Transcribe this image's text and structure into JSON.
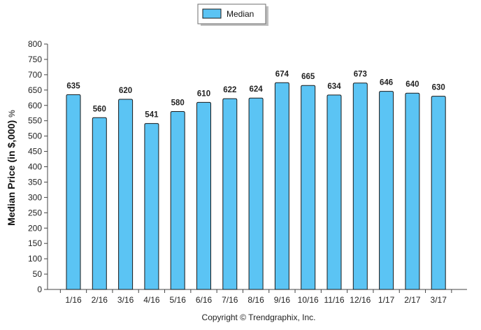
{
  "chart_data": {
    "type": "bar",
    "categories": [
      "1/16",
      "2/16",
      "3/16",
      "4/16",
      "5/16",
      "6/16",
      "7/16",
      "8/16",
      "9/16",
      "10/16",
      "11/16",
      "12/16",
      "1/17",
      "2/17",
      "3/17"
    ],
    "series": [
      {
        "name": "Median",
        "values": [
          635,
          560,
          620,
          541,
          580,
          610,
          622,
          624,
          674,
          665,
          634,
          673,
          646,
          640,
          630
        ]
      }
    ],
    "ylabel": "Median Price (in $,000)",
    "ylabel_unit": "%",
    "ylim": [
      0,
      800
    ],
    "yticks": [
      0,
      50,
      100,
      150,
      200,
      250,
      300,
      350,
      400,
      450,
      500,
      550,
      600,
      650,
      700,
      750,
      800
    ],
    "legend_position": "top-center",
    "grid": false,
    "data_labels": true,
    "colors": {
      "bar_fill": "#5BC4F4",
      "bar_stroke": "#1A1A1A"
    }
  },
  "footer": {
    "copyright": "Copyright © Trendgraphix, Inc."
  }
}
